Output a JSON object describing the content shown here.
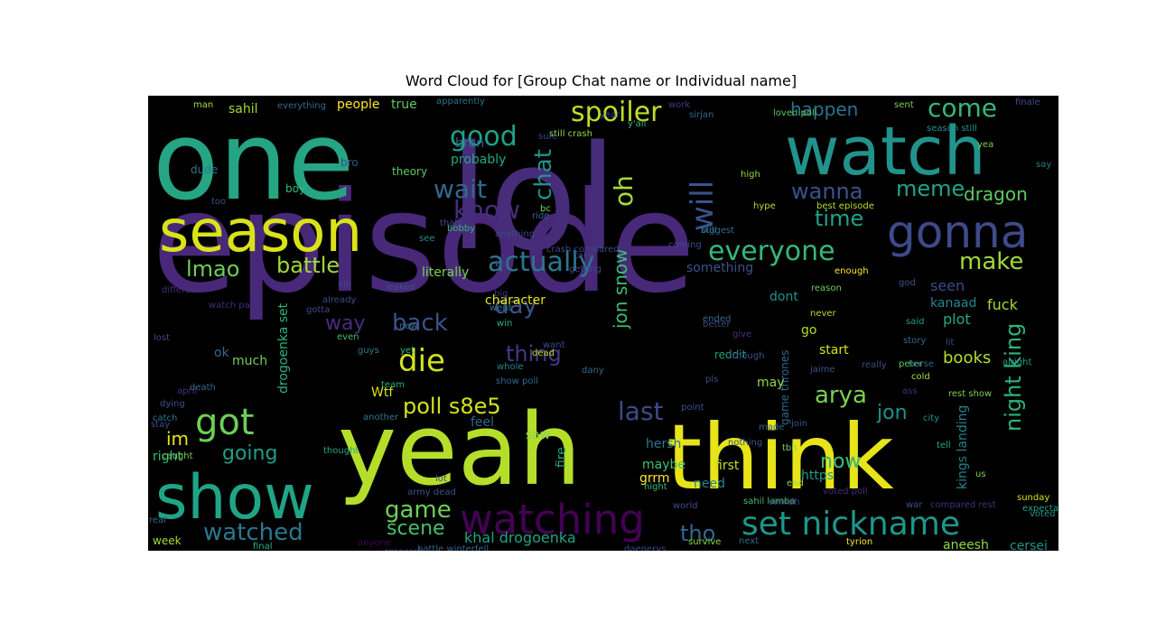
{
  "chart_data": {
    "type": "wordcloud",
    "title": "Word Cloud for [Group Chat name or Individual name]",
    "background": "#000000",
    "colormap": "viridis",
    "words": [
      {
        "text": "episode",
        "color": "#482878"
      },
      {
        "text": "lol",
        "color": "#472c7a"
      },
      {
        "text": "one",
        "color": "#25a584"
      },
      {
        "text": "yeah",
        "color": "#b5de2b"
      },
      {
        "text": "think",
        "color": "#e7e419"
      },
      {
        "text": "watch",
        "color": "#22928c"
      },
      {
        "text": "season",
        "color": "#dae319"
      },
      {
        "text": "show",
        "color": "#20a486"
      },
      {
        "text": "gonna",
        "color": "#3e4a89"
      },
      {
        "text": "watching",
        "color": "#440154"
      },
      {
        "text": "set nickname",
        "color": "#1f968b"
      },
      {
        "text": "got",
        "color": "#6ece58"
      },
      {
        "text": "will",
        "color": "#3b528b"
      },
      {
        "text": "everyone",
        "color": "#35b779"
      },
      {
        "text": "actually",
        "color": "#2a788e"
      },
      {
        "text": "good",
        "color": "#1fa187"
      },
      {
        "text": "spoiler",
        "color": "#bddf26"
      },
      {
        "text": "come",
        "color": "#35b779"
      },
      {
        "text": "chat",
        "color": "#21918c"
      },
      {
        "text": "oh",
        "color": "#a5db36"
      },
      {
        "text": "wait",
        "color": "#31688e"
      },
      {
        "text": "know",
        "color": "#472d7b"
      },
      {
        "text": "die",
        "color": "#d2e21b"
      },
      {
        "text": "battle",
        "color": "#a0da39"
      },
      {
        "text": "lmao",
        "color": "#6ece58"
      },
      {
        "text": "make",
        "color": "#a0da39"
      },
      {
        "text": "meme",
        "color": "#20a486"
      },
      {
        "text": "wanna",
        "color": "#3b528b"
      },
      {
        "text": "time",
        "color": "#1fa187"
      },
      {
        "text": "happen",
        "color": "#2c728e"
      },
      {
        "text": "dragon",
        "color": "#5ec962"
      },
      {
        "text": "night king",
        "color": "#2db27d"
      },
      {
        "text": "jon snow",
        "color": "#3dbc74"
      },
      {
        "text": "last",
        "color": "#3e4a89"
      },
      {
        "text": "arya",
        "color": "#7ad151"
      },
      {
        "text": "back",
        "color": "#3b528b"
      },
      {
        "text": "poll s8e5",
        "color": "#d2e21b"
      },
      {
        "text": "day",
        "color": "#3b528b"
      },
      {
        "text": "thing",
        "color": "#443983"
      },
      {
        "text": "way",
        "color": "#472d7b"
      },
      {
        "text": "watched",
        "color": "#2a788e"
      },
      {
        "text": "game",
        "color": "#6ece58"
      },
      {
        "text": "scene",
        "color": "#44bf70"
      },
      {
        "text": "tho",
        "color": "#31688e"
      },
      {
        "text": "now",
        "color": "#35b779"
      },
      {
        "text": "going",
        "color": "#1f9e89"
      },
      {
        "text": "im",
        "color": "#e5e419"
      },
      {
        "text": "jon",
        "color": "#21918c"
      },
      {
        "text": "books",
        "color": "#b5de2b"
      },
      {
        "text": "plot",
        "color": "#22a884"
      },
      {
        "text": "seen",
        "color": "#3e4a89"
      },
      {
        "text": "fuck",
        "color": "#a5db36"
      },
      {
        "text": "kanaad",
        "color": "#24868e"
      },
      {
        "text": "character",
        "color": "#e5e419"
      },
      {
        "text": "literally",
        "color": "#7ad151"
      },
      {
        "text": "drogoenka set",
        "color": "#2db27d"
      },
      {
        "text": "khal drogoenka",
        "color": "#20a486"
      },
      {
        "text": "cersei",
        "color": "#21918c"
      },
      {
        "text": "aneesh",
        "color": "#8fd744"
      },
      {
        "text": "kings landing",
        "color": "#26828e"
      },
      {
        "text": "game thrones",
        "color": "#31688e"
      },
      {
        "text": "sahil",
        "color": "#a0da39"
      },
      {
        "text": "people",
        "color": "#fde725"
      },
      {
        "text": "true",
        "color": "#5ec962"
      },
      {
        "text": "bran",
        "color": "#31688e"
      },
      {
        "text": "probably",
        "color": "#22a884"
      },
      {
        "text": "something",
        "color": "#3b528b"
      },
      {
        "text": "fire",
        "color": "#20a486"
      },
      {
        "text": "now",
        "color": "#35b779"
      },
      {
        "text": "reddit",
        "color": "#1f9e89"
      },
      {
        "text": "start",
        "color": "#d2e21b"
      },
      {
        "text": "go",
        "color": "#b5de2b"
      },
      {
        "text": "may",
        "color": "#8fd744"
      },
      {
        "text": "dont",
        "color": "#21918c"
      },
      {
        "text": "feel",
        "color": "#31688e"
      },
      {
        "text": "saw",
        "color": "#86d549"
      },
      {
        "text": "hersh",
        "color": "#2a788e"
      },
      {
        "text": "maybe",
        "color": "#44bf70"
      },
      {
        "text": "first",
        "color": "#c2df23"
      },
      {
        "text": "need",
        "color": "#26828e"
      },
      {
        "text": "grrm",
        "color": "#fde725"
      },
      {
        "text": "https",
        "color": "#1f9e89"
      },
      {
        "text": "much",
        "color": "#6ece58"
      },
      {
        "text": "ok",
        "color": "#31688e"
      },
      {
        "text": "right",
        "color": "#35b779"
      },
      {
        "text": "Wtf",
        "color": "#d8e219"
      },
      {
        "text": "week",
        "color": "#a5db36"
      },
      {
        "text": "dude",
        "color": "#2a788e"
      },
      {
        "text": "boy",
        "color": "#35b779"
      },
      {
        "text": "bro",
        "color": "#3b528b"
      },
      {
        "text": "theory",
        "color": "#5ec962"
      },
      {
        "text": "man",
        "color": "#a5db36"
      },
      {
        "text": "everything",
        "color": "#31688e"
      },
      {
        "text": "apparently",
        "color": "#2c728e"
      },
      {
        "text": "work",
        "color": "#443983"
      },
      {
        "text": "sent",
        "color": "#7ad151"
      },
      {
        "text": "finale",
        "color": "#3e4a89"
      },
      {
        "text": "sirjan",
        "color": "#31688e"
      },
      {
        "text": "y'all",
        "color": "#35b779"
      },
      {
        "text": "still crash",
        "color": "#8fd744"
      },
      {
        "text": "year",
        "color": "#3e4a89"
      },
      {
        "text": "loved poll",
        "color": "#5ec962"
      },
      {
        "text": "season still",
        "color": "#21918c"
      },
      {
        "text": "yea",
        "color": "#7ad151"
      },
      {
        "text": "say",
        "color": "#2a788e"
      },
      {
        "text": "high",
        "color": "#8fd744"
      },
      {
        "text": "best episode",
        "color": "#b5de2b"
      },
      {
        "text": "hype",
        "color": "#b5de2b"
      },
      {
        "text": "still",
        "color": "#2c728e"
      },
      {
        "text": "coming",
        "color": "#3e4a89"
      },
      {
        "text": "biggest",
        "color": "#31688e"
      },
      {
        "text": "enough",
        "color": "#fde725"
      },
      {
        "text": "reason",
        "color": "#6ece58"
      },
      {
        "text": "god",
        "color": "#3b528b"
      },
      {
        "text": "never",
        "color": "#b5de2b"
      },
      {
        "text": "said",
        "color": "#1f9e89"
      },
      {
        "text": "cold",
        "color": "#a5db36"
      },
      {
        "text": "story",
        "color": "#31688e"
      },
      {
        "text": "alright",
        "color": "#1f9e89"
      },
      {
        "text": "peter",
        "color": "#5ec962"
      },
      {
        "text": "rest show",
        "color": "#7ad151"
      },
      {
        "text": "city",
        "color": "#21918c"
      },
      {
        "text": "tell",
        "color": "#22a884"
      },
      {
        "text": "war",
        "color": "#3b528b"
      },
      {
        "text": "us",
        "color": "#7ad151"
      },
      {
        "text": "sunday",
        "color": "#d2e21b"
      },
      {
        "text": "voted loved",
        "color": "#21918c"
      },
      {
        "text": "expectations",
        "color": "#20a486"
      },
      {
        "text": "compared rest",
        "color": "#472d7b"
      },
      {
        "text": "next",
        "color": "#31688e"
      },
      {
        "text": "tyrion",
        "color": "#fde725"
      },
      {
        "text": "survive",
        "color": "#8fd744"
      },
      {
        "text": "daenerys",
        "color": "#3e4a89"
      },
      {
        "text": "battle winterfell",
        "color": "#31688e"
      },
      {
        "text": "research",
        "color": "#3e4a89"
      },
      {
        "text": "anyone",
        "color": "#440154"
      },
      {
        "text": "final",
        "color": "#2db27d"
      },
      {
        "text": "lot",
        "color": "#3e4a89"
      },
      {
        "text": "army dead",
        "color": "#3b528b"
      },
      {
        "text": "caught",
        "color": "#7ad151"
      },
      {
        "text": "thought",
        "color": "#22a884"
      },
      {
        "text": "another",
        "color": "#2a788e"
      },
      {
        "text": "team",
        "color": "#2db27d"
      },
      {
        "text": "whole",
        "color": "#26828e"
      },
      {
        "text": "dany",
        "color": "#31688e"
      },
      {
        "text": "dead",
        "color": "#b5de2b"
      },
      {
        "text": "want",
        "color": "#3e4a89"
      },
      {
        "text": "win",
        "color": "#2db27d"
      },
      {
        "text": "went",
        "color": "#2a788e"
      },
      {
        "text": "new",
        "color": "#31688e"
      },
      {
        "text": "even",
        "color": "#44bf70"
      },
      {
        "text": "guys",
        "color": "#2a788e"
      },
      {
        "text": "yet",
        "color": "#35b779"
      },
      {
        "text": "ended",
        "color": "#31688e"
      },
      {
        "text": "better",
        "color": "#3e4a89"
      },
      {
        "text": "give",
        "color": "#472d7b"
      },
      {
        "text": "jaime",
        "color": "#3b528b"
      },
      {
        "text": "really",
        "color": "#3e4a89"
      },
      {
        "text": "ass",
        "color": "#472d7b"
      },
      {
        "text": "lit",
        "color": "#3e4a89"
      },
      {
        "text": "horse",
        "color": "#31688e"
      },
      {
        "text": "join",
        "color": "#3b528b"
      },
      {
        "text": "tbh",
        "color": "#7ad151"
      },
      {
        "text": "made",
        "color": "#31688e"
      },
      {
        "text": "pls",
        "color": "#3e4a89"
      },
      {
        "text": "point",
        "color": "#3b528b"
      },
      {
        "text": "though",
        "color": "#3b528b"
      },
      {
        "text": "nothing",
        "color": "#3b528b"
      },
      {
        "text": "night",
        "color": "#35b779"
      },
      {
        "text": "end",
        "color": "#8fd744"
      },
      {
        "text": "voted poll",
        "color": "#472d7b"
      },
      {
        "text": "sahil lamba",
        "color": "#44bf70"
      },
      {
        "text": "world",
        "color": "#3e4a89"
      },
      {
        "text": "virindh",
        "color": "#3e4a89"
      },
      {
        "text": "show poll",
        "color": "#31688e"
      },
      {
        "text": "april",
        "color": "#472d7b"
      },
      {
        "text": "death",
        "color": "#31688e"
      },
      {
        "text": "dying",
        "color": "#3b528b"
      },
      {
        "text": "catch",
        "color": "#2a788e"
      },
      {
        "text": "stay",
        "color": "#3e4a89"
      },
      {
        "text": "real",
        "color": "#31688e"
      },
      {
        "text": "lost",
        "color": "#3e4a89"
      },
      {
        "text": "watch party",
        "color": "#472d7b"
      },
      {
        "text": "gotta",
        "color": "#3e4a89"
      },
      {
        "text": "different",
        "color": "#472d7b"
      },
      {
        "text": "leaked",
        "color": "#3b528b"
      },
      {
        "text": "already",
        "color": "#3e4a89"
      },
      {
        "text": "idk",
        "color": "#3e4a89"
      },
      {
        "text": "thats",
        "color": "#3e4a89"
      },
      {
        "text": "bobby",
        "color": "#35b779"
      },
      {
        "text": "anything",
        "color": "#3e4a89"
      },
      {
        "text": "kill",
        "color": "#3e4a89"
      },
      {
        "text": "big",
        "color": "#472d7b"
      },
      {
        "text": "see",
        "color": "#21918c"
      },
      {
        "text": "crash compared",
        "color": "#3e4a89"
      },
      {
        "text": "getting",
        "color": "#3e4a89"
      },
      {
        "text": "take",
        "color": "#3e4a89"
      },
      {
        "text": "ride",
        "color": "#31688e"
      },
      {
        "text": "bc",
        "color": "#7ad151"
      },
      {
        "text": "sure",
        "color": "#3e4a89"
      },
      {
        "text": "too",
        "color": "#3e4a89"
      }
    ]
  }
}
